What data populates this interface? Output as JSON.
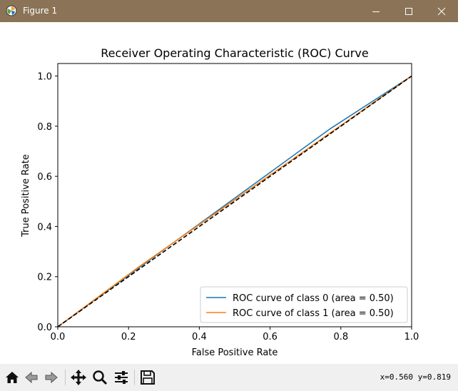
{
  "window": {
    "title": "Figure 1",
    "controls": [
      "minimize",
      "maximize",
      "close"
    ]
  },
  "toolbar": {
    "tools": [
      "home-icon",
      "back-icon",
      "forward-icon",
      "pan-icon",
      "zoom-icon",
      "configure-subplots-icon",
      "save-icon"
    ],
    "coords_text": "x=0.560 y=0.819"
  },
  "chart_data": {
    "type": "line",
    "title": "Receiver Operating Characteristic (ROC) Curve",
    "xlabel": "False Positive Rate",
    "ylabel": "True Positive Rate",
    "xlim": [
      0.0,
      1.0
    ],
    "ylim": [
      0.0,
      1.05
    ],
    "xticks": [
      "0.0",
      "0.2",
      "0.4",
      "0.6",
      "0.8",
      "1.0"
    ],
    "yticks": [
      "0.0",
      "0.2",
      "0.4",
      "0.6",
      "0.8",
      "1.0"
    ],
    "legend_position": "lower-right",
    "series": [
      {
        "name": "ROC curve of class 0 (area = 0.50)",
        "color": "#1f77b4",
        "style": "solid",
        "x": [
          0.0,
          0.77,
          1.0
        ],
        "y": [
          0.0,
          0.79,
          1.0
        ]
      },
      {
        "name": "ROC curve of class 1 (area = 0.50)",
        "color": "#ff7f0e",
        "style": "solid",
        "x": [
          0.0,
          0.23,
          1.0
        ],
        "y": [
          0.0,
          0.24,
          1.0
        ]
      },
      {
        "color": "#000000",
        "style": "dashed",
        "x": [
          0.0,
          1.0
        ],
        "y": [
          0.0,
          1.0
        ]
      }
    ]
  }
}
